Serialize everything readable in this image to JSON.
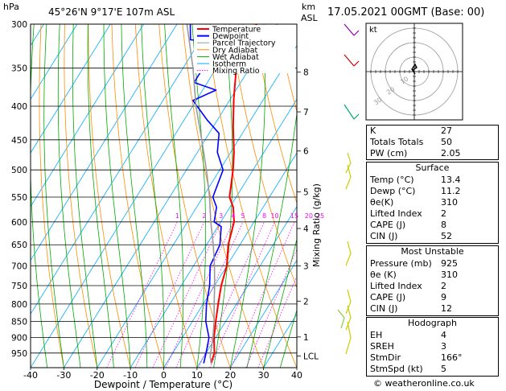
{
  "header": {
    "yunit": "hPa",
    "location": "45°26'N  9°17'E  107m  ASL",
    "km_unit": "km",
    "asl_unit": "ASL",
    "datetime": "17.05.2021  00GMT  (Base: 00)"
  },
  "legend": [
    {
      "label": "Temperature",
      "color": "#ff0000"
    },
    {
      "label": "Dewpoint",
      "color": "#0000ff"
    },
    {
      "label": "Parcel Trajectory",
      "color": "#999999"
    },
    {
      "label": "Dry Adiabat",
      "color": "#ff8c00"
    },
    {
      "label": "Wet Adiabat",
      "color": "#00aa00"
    },
    {
      "label": "Isotherm",
      "color": "#00aaff"
    },
    {
      "label": "Mixing Ratio",
      "color": "#ff00ff"
    }
  ],
  "chart_data": {
    "type": "line",
    "xlabel": "Dewpoint / Temperature (°C)",
    "ylabel": "hPa",
    "right_axis_label": "Mixing Ratio (g/kg)",
    "xlim": [
      -40,
      40
    ],
    "ylim": [
      300,
      1000
    ],
    "x_ticks": [
      "-40",
      "-30",
      "-20",
      "-10",
      "0",
      "10",
      "20",
      "30",
      "40"
    ],
    "pressure_ticks": [
      "300",
      "350",
      "400",
      "450",
      "500",
      "550",
      "600",
      "650",
      "700",
      "750",
      "800",
      "850",
      "900",
      "950"
    ],
    "km_ticks": [
      {
        "label": "8",
        "p": 355
      },
      {
        "label": "7",
        "p": 408
      },
      {
        "label": "6",
        "p": 468
      },
      {
        "label": "5",
        "p": 540
      },
      {
        "label": "4",
        "p": 614
      },
      {
        "label": "3",
        "p": 700
      },
      {
        "label": "2",
        "p": 792
      },
      {
        "label": "1",
        "p": 898
      },
      {
        "label": "LCL",
        "p": 960
      }
    ],
    "mixing_ratio_labels": [
      "1",
      "2",
      "3",
      "4",
      "5",
      "8",
      "10",
      "15",
      "20",
      "25"
    ],
    "series": [
      {
        "name": "Temperature",
        "color": "#ff0000",
        "points": [
          [
            13.4,
            985
          ],
          [
            12.5,
            950
          ],
          [
            9.5,
            900
          ],
          [
            7,
            850
          ],
          [
            4.5,
            800
          ],
          [
            2,
            750
          ],
          [
            0,
            700
          ],
          [
            -3.5,
            650
          ],
          [
            -6,
            600
          ],
          [
            -9,
            570
          ],
          [
            -12,
            550
          ],
          [
            -16,
            500
          ],
          [
            -19,
            470
          ],
          [
            -24,
            430
          ],
          [
            -29,
            390
          ],
          [
            -34,
            350
          ],
          [
            -38,
            320
          ],
          [
            -36,
            300
          ]
        ]
      },
      {
        "name": "Dewpoint",
        "color": "#0000ff",
        "points": [
          [
            11.2,
            985
          ],
          [
            10,
            950
          ],
          [
            8,
            900
          ],
          [
            4,
            850
          ],
          [
            1,
            800
          ],
          [
            -1.5,
            750
          ],
          [
            -5,
            700
          ],
          [
            -6,
            650
          ],
          [
            -9,
            610
          ],
          [
            -12,
            600
          ],
          [
            -14,
            570
          ],
          [
            -17,
            550
          ],
          [
            -19,
            500
          ],
          [
            -24,
            470
          ],
          [
            -27,
            440
          ],
          [
            -33,
            420
          ],
          [
            -41,
            392
          ],
          [
            -36,
            378
          ],
          [
            -44,
            368
          ],
          [
            -44,
            350
          ],
          [
            -38,
            332
          ],
          [
            -40,
            320
          ],
          [
            -53,
            317
          ],
          [
            -56,
            300
          ]
        ]
      },
      {
        "name": "Parcel Trajectory",
        "color": "#999999",
        "points": [
          [
            13.4,
            985
          ],
          [
            11.8,
            960
          ],
          [
            9.2,
            900
          ],
          [
            6.5,
            850
          ],
          [
            3.3,
            800
          ],
          [
            0,
            750
          ],
          [
            -3.7,
            700
          ],
          [
            -8,
            650
          ],
          [
            -13,
            600
          ],
          [
            -18,
            550
          ],
          [
            -24,
            500
          ],
          [
            -31,
            450
          ],
          [
            -39,
            400
          ],
          [
            -47,
            350
          ],
          [
            -57,
            300
          ]
        ]
      }
    ]
  },
  "hodograph": {
    "label": "kt",
    "ring_labels": [
      "10",
      "20",
      "30"
    ]
  },
  "indices": {
    "k_label": "K",
    "k_value": "27",
    "tt_label": "Totals Totals",
    "tt_value": "50",
    "pw_label": "PW (cm)",
    "pw_value": "2.05"
  },
  "surface": {
    "title": "Surface",
    "temp_label": "Temp (°C)",
    "temp_value": "13.4",
    "dewp_label": "Dewp (°C)",
    "dewp_value": "11.2",
    "theta_label": "θe(K)",
    "theta_value": "310",
    "li_label": "Lifted Index",
    "li_value": "2",
    "cape_label": "CAPE (J)",
    "cape_value": "8",
    "cin_label": "CIN (J)",
    "cin_value": "52"
  },
  "most_unstable": {
    "title": "Most Unstable",
    "pressure_label": "Pressure (mb)",
    "pressure_value": "925",
    "theta_label": "θe (K)",
    "theta_value": "310",
    "li_label": "Lifted Index",
    "li_value": "2",
    "cape_label": "CAPE (J)",
    "cape_value": "9",
    "cin_label": "CIN (J)",
    "cin_value": "12"
  },
  "hodo_table": {
    "title": "Hodograph",
    "eh_label": "EH",
    "eh_value": "4",
    "sreh_label": "SREH",
    "sreh_value": "3",
    "stmdir_label": "StmDir",
    "stmdir_value": "166°",
    "stmspd_label": "StmSpd (kt)",
    "stmspd_value": "5"
  },
  "footer": {
    "copyright": "© weatheronline.co.uk"
  }
}
